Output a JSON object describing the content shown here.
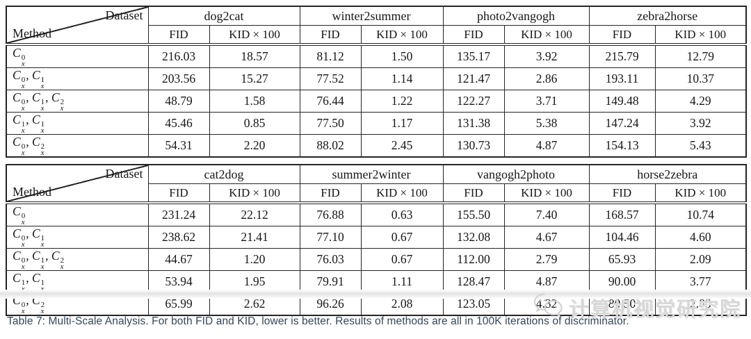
{
  "corner": {
    "dataset": "Dataset",
    "method": "Method"
  },
  "metrics": [
    "FID",
    "KID × 100"
  ],
  "method_base": "C",
  "tables": [
    {
      "datasets": [
        "dog2cat",
        "winter2summer",
        "photo2vangogh",
        "zebra2horse"
      ],
      "rows": [
        {
          "method": [
            {
              "sup": "0",
              "sub": "x"
            }
          ],
          "values": [
            "216.03",
            "18.57",
            "81.12",
            "1.50",
            "135.17",
            "3.92",
            "215.79",
            "12.79"
          ]
        },
        {
          "method": [
            {
              "sup": "0",
              "sub": "x"
            },
            {
              "sup": "1",
              "sub": "x"
            }
          ],
          "values": [
            "203.56",
            "15.27",
            "77.52",
            "1.14",
            "121.47",
            "2.86",
            "193.11",
            "10.37"
          ]
        },
        {
          "method": [
            {
              "sup": "0",
              "sub": "x"
            },
            {
              "sup": "1",
              "sub": "x"
            },
            {
              "sup": "2",
              "sub": "x"
            }
          ],
          "values": [
            "48.79",
            "1.58",
            "76.44",
            "1.22",
            "122.27",
            "3.71",
            "149.48",
            "4.29"
          ]
        },
        {
          "method": [
            {
              "sup": "1",
              "sub": "x"
            },
            {
              "sup": "1",
              "sub": "x"
            }
          ],
          "values": [
            "45.46",
            "0.85",
            "77.50",
            "1.17",
            "131.38",
            "5.38",
            "147.24",
            "3.92"
          ]
        },
        {
          "method": [
            {
              "sup": "0",
              "sub": "x"
            },
            {
              "sup": "2",
              "sub": "x"
            }
          ],
          "values": [
            "54.31",
            "2.20",
            "88.02",
            "2.45",
            "130.73",
            "4.87",
            "154.13",
            "5.43"
          ]
        }
      ]
    },
    {
      "datasets": [
        "cat2dog",
        "summer2winter",
        "vangogh2photo",
        "horse2zebra"
      ],
      "rows": [
        {
          "method": [
            {
              "sup": "0",
              "sub": "x"
            }
          ],
          "values": [
            "231.24",
            "22.12",
            "76.88",
            "0.63",
            "155.50",
            "7.40",
            "168.57",
            "10.74"
          ]
        },
        {
          "method": [
            {
              "sup": "0",
              "sub": "x"
            },
            {
              "sup": "1",
              "sub": "x"
            }
          ],
          "values": [
            "238.62",
            "21.41",
            "77.10",
            "0.67",
            "132.08",
            "4.67",
            "104.46",
            "4.60"
          ]
        },
        {
          "method": [
            {
              "sup": "0",
              "sub": "x"
            },
            {
              "sup": "1",
              "sub": "x"
            },
            {
              "sup": "2",
              "sub": "x"
            }
          ],
          "values": [
            "44.67",
            "1.20",
            "76.03",
            "0.67",
            "112.00",
            "2.79",
            "65.93",
            "2.09"
          ]
        },
        {
          "method": [
            {
              "sup": "1",
              "sub": "x"
            },
            {
              "sup": "1",
              "sub": "x"
            }
          ],
          "values": [
            "53.94",
            "1.95",
            "79.91",
            "1.11",
            "128.47",
            "4.87",
            "90.00",
            "3.77"
          ]
        },
        {
          "method": [
            {
              "sup": "0",
              "sub": "x"
            },
            {
              "sup": "2",
              "sub": "x"
            }
          ],
          "values": [
            "65.99",
            "2.62",
            "96.26",
            "2.08",
            "123.05",
            "4.32",
            "80.50",
            "2.85"
          ]
        }
      ]
    }
  ],
  "caption": "Table 7: Multi-Scale Analysis. For both FID and KID, lower is better. Results of methods are all in 100K iterations of discriminator.",
  "watermark": {
    "text": "计算机视觉研究院",
    "icon": "wechat-logo-icon"
  }
}
